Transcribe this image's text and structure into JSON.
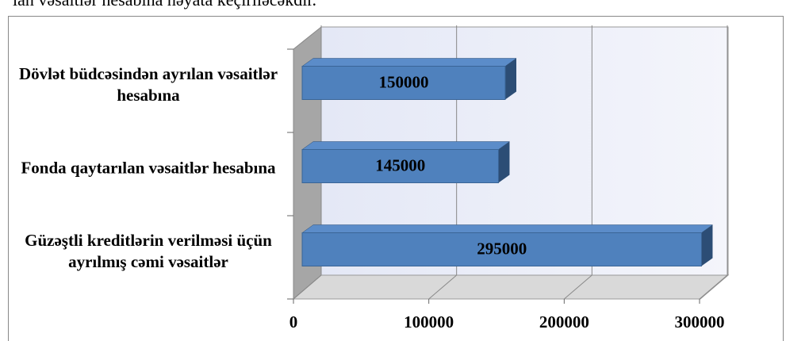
{
  "caption": "lan vəsaitlər hesabına həyata keçiriləcəkdir.",
  "chart_data": {
    "type": "bar",
    "orientation": "horizontal",
    "categories": [
      "Dövlət büdcəsindən ayrılan vəsaitlər hesabına",
      "Fonda qaytarılan vəsaitlər hesabına",
      "Güzəştli kreditlərin verilməsi üçün ayrılmış cəmi vəsaitlər"
    ],
    "values": [
      150000,
      145000,
      295000
    ],
    "color": "#4f81bd",
    "xlim": [
      0,
      300000
    ],
    "xticks": [
      0,
      100000,
      200000,
      300000
    ],
    "grid": true
  }
}
